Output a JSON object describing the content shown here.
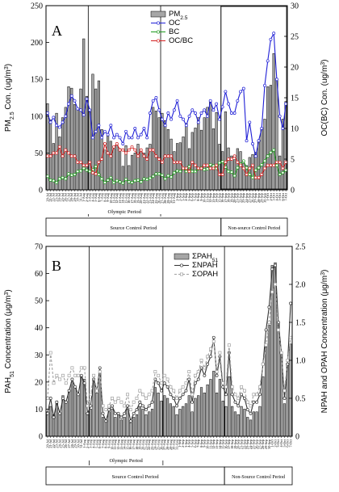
{
  "chart_data": [
    {
      "type": "bar",
      "panel_label": "A",
      "ylabel": "PM2.5 Con. (ug/m3)",
      "ylabel_parts": {
        "main": "PM",
        "sub": "2.5",
        "tail": " Con. (ug/m",
        "sup": "3",
        "end": ")"
      },
      "y2label": "OC(BC) Con. (ug/m3)",
      "y2label_parts": {
        "main": "OC(BC) Con. (ug/m",
        "sup": "3",
        "end": ")"
      },
      "ylim": [
        0,
        250
      ],
      "y2lim": [
        0,
        30
      ],
      "yticks": [
        0,
        50,
        100,
        150,
        200,
        250
      ],
      "y2ticks": [
        0,
        5,
        10,
        15,
        20,
        25,
        30
      ],
      "categories": [
        "20-Jul",
        "21-Jul",
        "22-Jul",
        "23-Jul",
        "24-Jul",
        "25-Jul",
        "26-Jul",
        "27-Jul",
        "28-Jul",
        "29-Jul",
        "30-Jul",
        "31-Jul",
        "1-Aug",
        "2-Aug",
        "3-Aug",
        "4-Aug",
        "5-Aug",
        "6-Aug",
        "7-Aug",
        "8-Aug",
        "9-Aug",
        "10-Aug",
        "11-Aug",
        "12-Aug",
        "13-Aug",
        "14-Aug",
        "15-Aug",
        "16-Aug",
        "17-Aug",
        "18-Aug",
        "19-Aug",
        "20-Aug",
        "21-Aug",
        "22-Aug",
        "23-Aug",
        "24-Aug",
        "25-Aug",
        "26-Aug",
        "27-Aug",
        "28-Aug",
        "29-Aug",
        "30-Aug",
        "31-Aug",
        "1-Sep",
        "2-Sep",
        "3-Sep",
        "4-Sep",
        "5-Sep",
        "6-Sep",
        "7-Sep",
        "8-Sep",
        "9-Sep",
        "10-Sep",
        "11-Sep",
        "12-Sep",
        "13-Sep",
        "14-Sep",
        "15-Sep",
        "16-Sep",
        "17-Sep",
        "18-Sep",
        "19-Sep",
        "20-Sep",
        "21-Sep",
        "22-Sep",
        "23-Sep",
        "24-Sep",
        "25-Sep",
        "26-Sep",
        "27-Sep",
        "28-Sep",
        "29-Sep",
        "30-Sep",
        "1-Oct",
        "2-Oct",
        "3-Oct",
        "4-Oct",
        "5-Oct",
        "6-Oct",
        "7-Oct"
      ],
      "series": [
        {
          "name": "PM2.5",
          "name_parts": {
            "main": "PM",
            "sub": "2.5"
          },
          "kind": "bar",
          "axis": "left",
          "values": [
            117,
            95,
            63,
            104,
            72,
            98,
            112,
            140,
            138,
            116,
            110,
            137,
            205,
            127,
            106,
            157,
            137,
            148,
            82,
            54,
            76,
            66,
            56,
            62,
            56,
            32,
            60,
            33,
            47,
            50,
            62,
            55,
            50,
            57,
            62,
            112,
            107,
            98,
            104,
            94,
            82,
            69,
            52,
            63,
            64,
            72,
            90,
            56,
            78,
            84,
            98,
            81,
            98,
            112,
            120,
            83,
            105,
            62,
            52,
            106,
            57,
            46,
            41,
            56,
            52,
            36,
            33,
            44,
            48,
            51,
            66,
            82,
            96,
            140,
            142,
            185,
            150,
            46,
            96,
            120
          ]
        },
        {
          "name": "OC",
          "kind": "line",
          "axis": "right",
          "color": "#1f1fd6",
          "values": [
            12.5,
            11,
            11.8,
            10.5,
            10.2,
            11,
            12,
            14,
            15.3,
            14.5,
            13.2,
            13,
            12.2,
            14.8,
            13,
            8.5,
            9.5,
            10.5,
            8.5,
            9.5,
            9,
            10.5,
            8.5,
            9,
            8.5,
            7.5,
            9.5,
            8.5,
            8.5,
            10,
            8.5,
            9,
            10,
            8.5,
            12.5,
            14.5,
            15,
            13,
            11.5,
            10.5,
            12.5,
            11.5,
            13,
            14.5,
            12,
            11.5,
            10.5,
            12,
            13,
            12.5,
            11,
            12.5,
            13,
            12,
            14.5,
            13,
            14,
            11.5,
            13.5,
            16,
            14,
            12.5,
            12.5,
            14.5,
            16,
            16.5,
            8,
            11,
            7.5,
            5.5,
            8,
            10,
            17,
            21,
            24.5,
            25.5,
            18,
            12,
            10,
            14
          ]
        },
        {
          "name": "BC",
          "kind": "line",
          "axis": "right",
          "color": "#1e9a1e",
          "values": [
            2.2,
            1.6,
            1.5,
            1.2,
            1.8,
            2.0,
            1.8,
            2.6,
            2.4,
            2.5,
            3.0,
            3.1,
            3.5,
            3.2,
            3.0,
            3.3,
            3.8,
            2.5,
            1.8,
            1.2,
            1.6,
            2.0,
            1.2,
            1.5,
            1.3,
            1.1,
            1.7,
            1.3,
            1.2,
            1.5,
            1.6,
            1.3,
            1.8,
            1.7,
            1.9,
            2.2,
            2.6,
            2.6,
            2.4,
            1.8,
            2.3,
            2.1,
            2.8,
            3.1,
            3.0,
            3.5,
            3.0,
            3.8,
            3.0,
            3.0,
            3.4,
            3.6,
            3.3,
            3.4,
            4.1,
            3.9,
            3.5,
            4.4,
            4.6,
            3.7,
            3.0,
            2.9,
            2.3,
            3.6,
            4.2,
            4.7,
            3.6,
            2.5,
            2.0,
            3.2,
            3.6,
            4.1,
            4.7,
            5.5,
            6.1,
            6.5,
            4.0,
            2.5,
            2.8,
            3.2
          ]
        },
        {
          "name": "OC/BC",
          "kind": "line",
          "axis": "right",
          "color": "#d42020",
          "values": [
            5.5,
            5.5,
            6,
            6,
            7,
            5.5,
            6.5,
            6,
            5.5,
            5.5,
            4.5,
            4.5,
            4,
            4,
            4.5,
            2.8,
            2.6,
            4.5,
            5,
            7.5,
            6,
            5.5,
            7,
            7.5,
            6.5,
            6.5,
            6,
            6.5,
            7,
            6.5,
            5.5,
            6.5,
            5.5,
            5,
            6.5,
            6.5,
            5.5,
            5,
            4.5,
            5.5,
            5.5,
            5.5,
            4.5,
            4.5,
            4.5,
            3.5,
            3.5,
            3,
            4.5,
            4,
            3.5,
            3.5,
            4,
            4,
            3.5,
            3.5,
            4,
            2.5,
            2.5,
            4.5,
            5,
            5,
            5.5,
            4.5,
            4,
            3.5,
            2.5,
            3.5,
            4,
            2,
            2,
            2.5,
            3.5,
            4,
            4,
            4,
            4.5,
            4.5,
            3.5,
            4.5
          ]
        }
      ],
      "legend": "top-center",
      "periods": {
        "olympic": "Olympic Period",
        "source": "Source Control Period",
        "nonsource": "Non-source Control Period"
      }
    },
    {
      "type": "bar",
      "panel_label": "B",
      "ylabel": "PAH51 Concentration (μg/m3)",
      "ylabel_parts": {
        "main": "PAH",
        "sub": "51",
        "tail": " Concentration (μg/m",
        "sup": "3",
        "end": ")"
      },
      "y2label": "NPAH and OPAH Concentration (μg/m3)",
      "y2label_parts": {
        "main": "NPAH and OPAH Concentration (μg/m",
        "sup": "3",
        "end": ")"
      },
      "ylim": [
        0,
        70
      ],
      "y2lim": [
        0,
        2.5
      ],
      "yticks": [
        0,
        10,
        20,
        30,
        40,
        50,
        60,
        70
      ],
      "y2ticks": [
        0,
        0.5,
        1.0,
        1.5,
        2.0,
        2.5
      ],
      "series": [
        {
          "name": "ΣPAH51",
          "name_parts": {
            "main": "ΣPAH",
            "sub": "51"
          },
          "kind": "bar",
          "axis": "left",
          "values": [
            9,
            11,
            8,
            13,
            8,
            15,
            13,
            17,
            20,
            18,
            15,
            22,
            21,
            8,
            10,
            21,
            16,
            24,
            7,
            6,
            9,
            10,
            7,
            8,
            6,
            7,
            10,
            5,
            7,
            8,
            11,
            10,
            8,
            9,
            10,
            18,
            16,
            13,
            15,
            14,
            12,
            11,
            8,
            10,
            11,
            12,
            15,
            9,
            14,
            15,
            18,
            16,
            19,
            21,
            24,
            16,
            21,
            13,
            11,
            22,
            11,
            9,
            8,
            11,
            10,
            7,
            6,
            9,
            9,
            11,
            22,
            33,
            41,
            63,
            64,
            42,
            31,
            12,
            27,
            34
          ]
        },
        {
          "name": "ΣNPAH",
          "kind": "line",
          "axis": "right",
          "color": "#333333",
          "marker": "circle",
          "values": [
            0.3,
            0.5,
            0.25,
            0.45,
            0.3,
            0.5,
            0.45,
            0.6,
            0.75,
            0.65,
            0.55,
            0.8,
            0.7,
            0.3,
            0.4,
            0.75,
            0.6,
            0.9,
            0.3,
            0.2,
            0.35,
            0.4,
            0.3,
            0.3,
            0.25,
            0.3,
            0.4,
            0.2,
            0.3,
            0.35,
            0.45,
            0.4,
            0.35,
            0.4,
            0.45,
            0.75,
            0.7,
            0.6,
            0.7,
            0.65,
            0.55,
            0.5,
            0.4,
            0.5,
            0.55,
            0.6,
            0.75,
            0.45,
            0.7,
            0.75,
            0.9,
            0.8,
            0.95,
            1.05,
            1.3,
            0.8,
            1.05,
            0.65,
            0.55,
            1.1,
            0.55,
            0.45,
            0.4,
            0.55,
            0.5,
            0.35,
            0.3,
            0.45,
            0.45,
            0.55,
            0.95,
            1.4,
            1.7,
            2.2,
            2.25,
            1.5,
            1.1,
            0.5,
            0.95,
            1.75
          ]
        },
        {
          "name": "ΣOPAH",
          "kind": "line",
          "axis": "right",
          "color": "#a0a0a0",
          "marker": "square",
          "dashed": true,
          "values": [
            0.5,
            1.1,
            0.7,
            0.8,
            0.75,
            0.8,
            0.7,
            0.8,
            0.9,
            0.8,
            0.8,
            0.9,
            0.9,
            0.4,
            0.55,
            0.8,
            0.6,
            0.85,
            0.4,
            0.35,
            0.4,
            0.5,
            0.45,
            0.5,
            0.45,
            0.4,
            0.55,
            0.35,
            0.45,
            0.5,
            0.6,
            0.55,
            0.5,
            0.55,
            0.6,
            0.85,
            0.8,
            0.7,
            0.8,
            0.75,
            0.65,
            0.6,
            0.5,
            0.6,
            0.65,
            0.7,
            0.85,
            0.55,
            0.8,
            0.85,
            1.0,
            0.9,
            1.05,
            1.15,
            1.25,
            0.85,
            1.1,
            0.7,
            0.65,
            1.2,
            0.65,
            0.55,
            0.5,
            0.65,
            0.6,
            0.45,
            0.4,
            0.55,
            0.55,
            0.65,
            0.95,
            1.2,
            1.5,
            1.9,
            2.0,
            1.4,
            1.1,
            0.6,
            1.0,
            1.3
          ]
        }
      ],
      "legend": "top-center",
      "periods": {
        "olympic": "Olympic Period",
        "source": "Source Control Period",
        "nonsource": "Non-Source Control Period"
      }
    }
  ]
}
